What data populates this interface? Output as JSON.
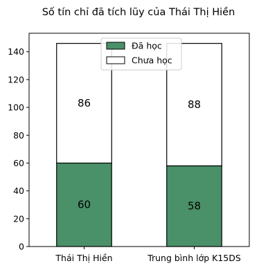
{
  "chart_data": {
    "type": "bar",
    "stacked": true,
    "title": "Số tín chỉ đã tích lũy của Thái Thị Hiền",
    "categories": [
      "Thái Thị Hiền",
      "Trung bình lớp K15DS"
    ],
    "series": [
      {
        "name": "Đã học",
        "values": [
          60,
          58
        ],
        "color": "#4a9068"
      },
      {
        "name": "Chưa học",
        "values": [
          86,
          88
        ],
        "color": "#ffffff"
      }
    ],
    "xlabel": "",
    "ylabel": "",
    "ylim": [
      0,
      153.3
    ],
    "yticks": [
      0,
      20,
      40,
      60,
      80,
      100,
      120,
      140
    ],
    "grid": false,
    "legend_position": "top-center"
  }
}
